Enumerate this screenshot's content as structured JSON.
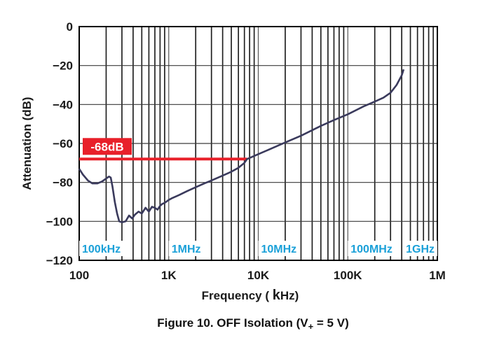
{
  "chart_data": {
    "type": "line",
    "title": "",
    "caption": {
      "prefix": "Figure 10. OFF Isolation (V",
      "subscript": "+",
      "suffix": " = 5 V)"
    },
    "xlabel": {
      "main": "Frequency ( ",
      "bold_k": "k",
      "rest": "Hz)"
    },
    "ylabel": "Attenuation (dB)",
    "x_scale": "log",
    "x_unit": "kHz",
    "xlim": [
      0.1,
      1000
    ],
    "ylim": [
      -120,
      0
    ],
    "grid": true,
    "x_ticks": [
      {
        "value": 0.1,
        "label": "100"
      },
      {
        "value": 1,
        "label": "1K"
      },
      {
        "value": 10,
        "label": "10K"
      },
      {
        "value": 100,
        "label": "100K"
      },
      {
        "value": 1000,
        "label": "1M"
      }
    ],
    "y_ticks": [
      {
        "value": 0,
        "label": "0"
      },
      {
        "value": -20,
        "label": "−20"
      },
      {
        "value": -40,
        "label": "−40"
      },
      {
        "value": -60,
        "label": "−60"
      },
      {
        "value": -80,
        "label": "−80"
      },
      {
        "value": -100,
        "label": "−100"
      },
      {
        "value": -120,
        "label": "−120"
      }
    ],
    "band_labels": [
      {
        "value": 0.1,
        "label": "100kHz"
      },
      {
        "value": 1,
        "label": "1MHz"
      },
      {
        "value": 10,
        "label": "10MHz"
      },
      {
        "value": 100,
        "label": "100MHz"
      },
      {
        "value": 1000,
        "label": "1GHz"
      }
    ],
    "reference_line": {
      "y": -68,
      "x_start": 0.1,
      "x_end": 7.5,
      "label": "-68dB",
      "color": "#e8202a"
    },
    "series": [
      {
        "name": "OFF Isolation",
        "color": "#3a3a5c",
        "x": [
          0.1,
          0.11,
          0.125,
          0.14,
          0.16,
          0.18,
          0.2,
          0.215,
          0.225,
          0.235,
          0.25,
          0.265,
          0.28,
          0.3,
          0.33,
          0.36,
          0.39,
          0.42,
          0.46,
          0.5,
          0.55,
          0.6,
          0.65,
          0.7,
          0.75,
          0.8,
          0.85,
          0.9,
          1.0,
          1.1,
          1.3,
          1.6,
          2,
          2.5,
          3,
          4,
          5,
          6,
          7,
          7.5,
          10,
          15,
          20,
          30,
          50,
          70,
          100,
          150,
          200,
          250,
          300,
          350,
          400,
          420
        ],
        "y": [
          -73,
          -76,
          -79,
          -80.5,
          -80.5,
          -79.5,
          -78,
          -77,
          -77.5,
          -82,
          -90,
          -96,
          -100,
          -100.5,
          -100,
          -97,
          -98.5,
          -96.5,
          -95,
          -96,
          -93,
          -95,
          -92.5,
          -93,
          -94,
          -92,
          -91,
          -90.5,
          -89,
          -88,
          -86.5,
          -84.5,
          -82.5,
          -80.5,
          -79,
          -76.5,
          -74.5,
          -72.5,
          -70,
          -68,
          -65.5,
          -62,
          -59.5,
          -56,
          -51,
          -48,
          -45,
          -41,
          -38.5,
          -36.5,
          -34,
          -30,
          -25,
          -22
        ]
      }
    ]
  }
}
